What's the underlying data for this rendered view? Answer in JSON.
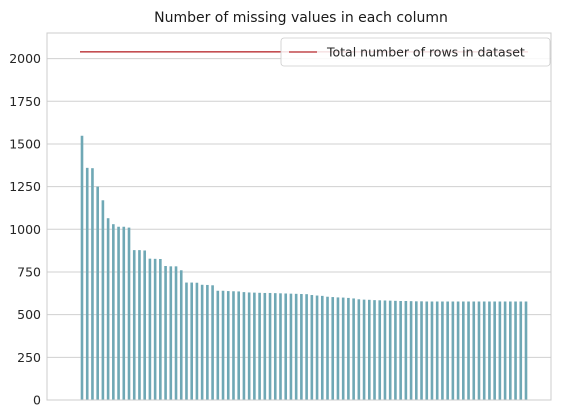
{
  "chart_data": {
    "type": "bar",
    "title": "Number of missing values in each column",
    "xlabel": "",
    "ylabel": "",
    "ylim": [
      0,
      2150
    ],
    "yticks": [
      0,
      250,
      500,
      750,
      1000,
      1250,
      1500,
      1750,
      2000
    ],
    "grid": "horizontal",
    "legend_position": "top-right",
    "series": [
      {
        "name": "Total number of rows in dataset",
        "type": "line",
        "color": "#c44e52",
        "values": [
          2040,
          2040
        ]
      },
      {
        "type": "bar",
        "color": "#6fa8b5",
        "values": [
          1548,
          1360,
          1358,
          1250,
          1170,
          1065,
          1030,
          1015,
          1015,
          1010,
          878,
          878,
          876,
          828,
          827,
          826,
          785,
          783,
          783,
          760,
          688,
          688,
          687,
          675,
          674,
          672,
          640,
          640,
          638,
          637,
          636,
          632,
          630,
          629,
          628,
          627,
          627,
          626,
          625,
          624,
          623,
          622,
          621,
          620,
          615,
          612,
          610,
          605,
          603,
          601,
          600,
          598,
          595,
          590,
          588,
          587,
          585,
          584,
          583,
          582,
          581,
          580,
          580,
          579,
          578,
          578,
          577,
          577,
          577,
          577,
          577,
          577,
          577,
          577,
          577,
          577,
          577,
          577,
          577,
          577,
          577,
          577,
          577,
          577,
          577,
          577
        ]
      }
    ]
  }
}
